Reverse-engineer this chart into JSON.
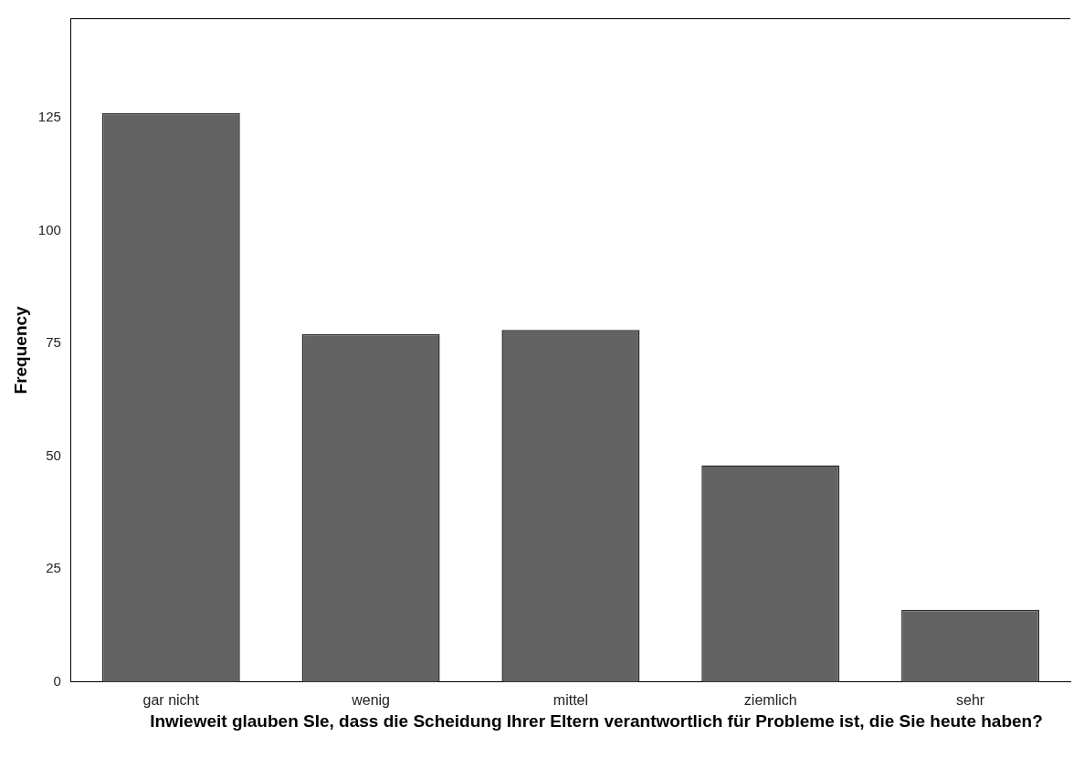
{
  "chart_data": {
    "type": "bar",
    "xlabel": "Inwieweit glauben SIe, dass die Scheidung Ihrer Eltern verantwortlich für Probleme ist, die Sie heute haben?",
    "ylabel": "Frequency",
    "categories": [
      "gar nicht",
      "wenig",
      "mittel",
      "ziemlich",
      "sehr"
    ],
    "values": [
      126,
      77,
      78,
      48,
      16
    ],
    "color": "#636363",
    "ylim": [
      0,
      147
    ],
    "yticks": [
      0,
      25,
      50,
      75,
      100,
      125
    ],
    "grid": false,
    "legend": false
  }
}
